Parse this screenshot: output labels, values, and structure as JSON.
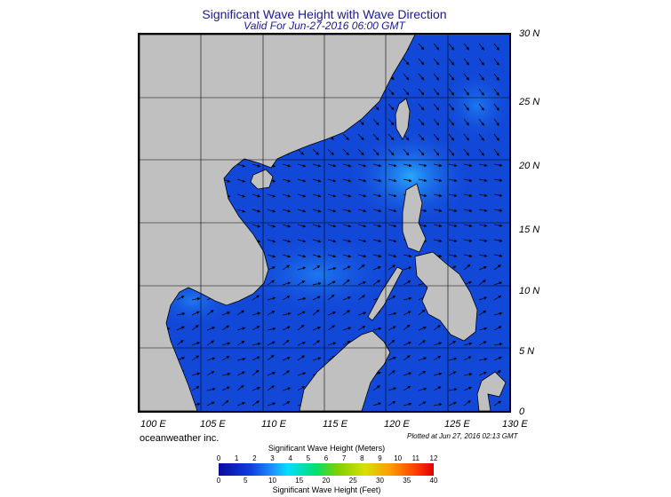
{
  "title": "Significant Wave Height with Wave Direction",
  "subtitle": "Valid For Jun-27-2016 06:00 GMT",
  "x_labels": [
    "100 E",
    "105 E",
    "110 E",
    "115 E",
    "120 E",
    "125 E",
    "130 E"
  ],
  "y_labels": [
    "30 N",
    "25 N",
    "20 N",
    "15 N",
    "10 N",
    "5 N",
    "0"
  ],
  "brand": "oceanweather inc.",
  "plotted": "Plotted at Jun 27, 2016 02:13 GMT",
  "colorbar": {
    "title_meters": "Significant Wave Height (Meters)",
    "title_feet": "Significant Wave Height (Feet)",
    "meters": [
      "0",
      "1",
      "2",
      "3",
      "4",
      "5",
      "6",
      "7",
      "8",
      "9",
      "10",
      "11",
      "12"
    ],
    "feet": [
      "0",
      "5",
      "10",
      "15",
      "20",
      "25",
      "30",
      "35",
      "40"
    ]
  },
  "colors": {
    "ocean": "#1248d8",
    "land": "#c0c0c0",
    "title": "#1a1a8c"
  }
}
